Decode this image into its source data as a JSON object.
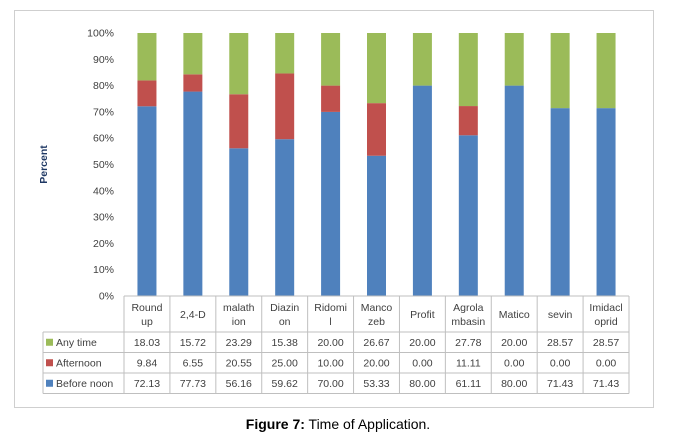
{
  "chart_data": {
    "type": "bar",
    "stacked": true,
    "ylabel": "Percent",
    "ylim": [
      0,
      100
    ],
    "yticks": [
      "0%",
      "10%",
      "20%",
      "30%",
      "40%",
      "50%",
      "60%",
      "70%",
      "80%",
      "90%",
      "100%"
    ],
    "categories": [
      [
        "Round",
        "up"
      ],
      [
        "2,4-D"
      ],
      [
        "malath",
        "ion"
      ],
      [
        "Diazin",
        "on"
      ],
      [
        "Ridomi",
        "l"
      ],
      [
        "Manco",
        "zeb"
      ],
      [
        "Profit"
      ],
      [
        "Agrola",
        "mbasin"
      ],
      [
        "Matico"
      ],
      [
        "sevin"
      ],
      [
        "Imidacl",
        "oprid"
      ]
    ],
    "series": [
      {
        "name": "Before noon",
        "color": "#4f81bd",
        "values": [
          72.13,
          77.73,
          56.16,
          59.62,
          70.0,
          53.33,
          80.0,
          61.11,
          80.0,
          71.43,
          71.43
        ],
        "labels": [
          "72.13",
          "77.73",
          "56.16",
          "59.62",
          "70.00",
          "53.33",
          "80.00",
          "61.11",
          "80.00",
          "71.43",
          "71.43"
        ]
      },
      {
        "name": "Afternoon",
        "color": "#c0504d",
        "values": [
          9.84,
          6.55,
          20.55,
          25.0,
          10.0,
          20.0,
          0.0,
          11.11,
          0.0,
          0.0,
          0.0
        ],
        "labels": [
          "9.84",
          "6.55",
          "20.55",
          "25.00",
          "10.00",
          "20.00",
          "0.00",
          "11.11",
          "0.00",
          "0.00",
          "0.00"
        ]
      },
      {
        "name": "Any time",
        "color": "#9bbb59",
        "values": [
          18.03,
          15.72,
          23.29,
          15.38,
          20.0,
          26.67,
          20.0,
          27.78,
          20.0,
          28.57,
          28.57
        ],
        "labels": [
          "18.03",
          "15.72",
          "23.29",
          "15.38",
          "20.00",
          "26.67",
          "20.00",
          "27.78",
          "20.00",
          "28.57",
          "28.57"
        ]
      }
    ],
    "table_row_order": [
      "Any time",
      "Afternoon",
      "Before noon"
    ],
    "grid": false,
    "legend": "data-table"
  },
  "caption": {
    "label": "Figure 7:",
    "text": " Time of Application."
  }
}
